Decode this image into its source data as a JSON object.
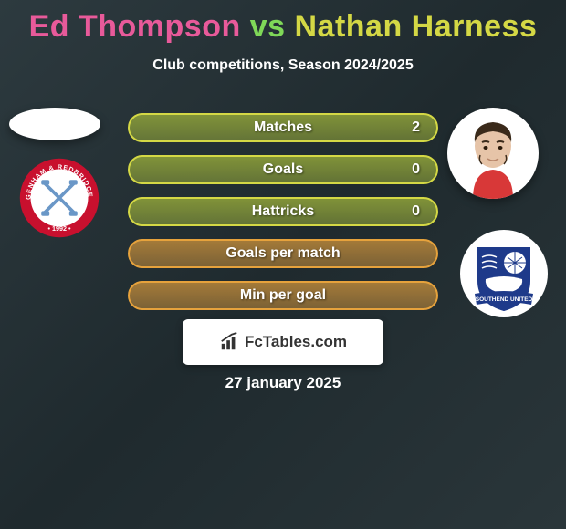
{
  "title": {
    "player1": {
      "text": "Ed Thompson",
      "color": "#e85a9a"
    },
    "vs": {
      "text": "vs",
      "color": "#7fd858"
    },
    "player2": {
      "text": "Nathan Harness",
      "color": "#d4d845"
    }
  },
  "subtitle": "Club competitions, Season 2024/2025",
  "stats": [
    {
      "label": "Matches",
      "value": "2",
      "border": "#d4d845",
      "fill": "#8fa23a"
    },
    {
      "label": "Goals",
      "value": "0",
      "border": "#d4d845",
      "fill": "#8fa23a"
    },
    {
      "label": "Hattricks",
      "value": "0",
      "border": "#d4d845",
      "fill": "#8fa23a"
    },
    {
      "label": "Goals per match",
      "value": "",
      "border": "#e6a23c",
      "fill": "#b8863a"
    },
    {
      "label": "Min per goal",
      "value": "",
      "border": "#e6a23c",
      "fill": "#b8863a"
    }
  ],
  "left_crest": {
    "outer_ring": "#c8102e",
    "inner_fill": "#ffffff",
    "hammer_color": "#6a97c7",
    "text_color": "#ffffff",
    "year": "1992"
  },
  "right_crest": {
    "bg": "#ffffff",
    "shield_fill": "#1e3a8a",
    "banner_text": "SOUTHEND UNITED",
    "text_color": "#1e3a8a"
  },
  "watermark": {
    "text": "FcTables.com",
    "icon_color": "#333333"
  },
  "date": "27 january 2025",
  "background_gradient": [
    "#2d3a3f",
    "#1f2a2e",
    "#2a363a"
  ]
}
